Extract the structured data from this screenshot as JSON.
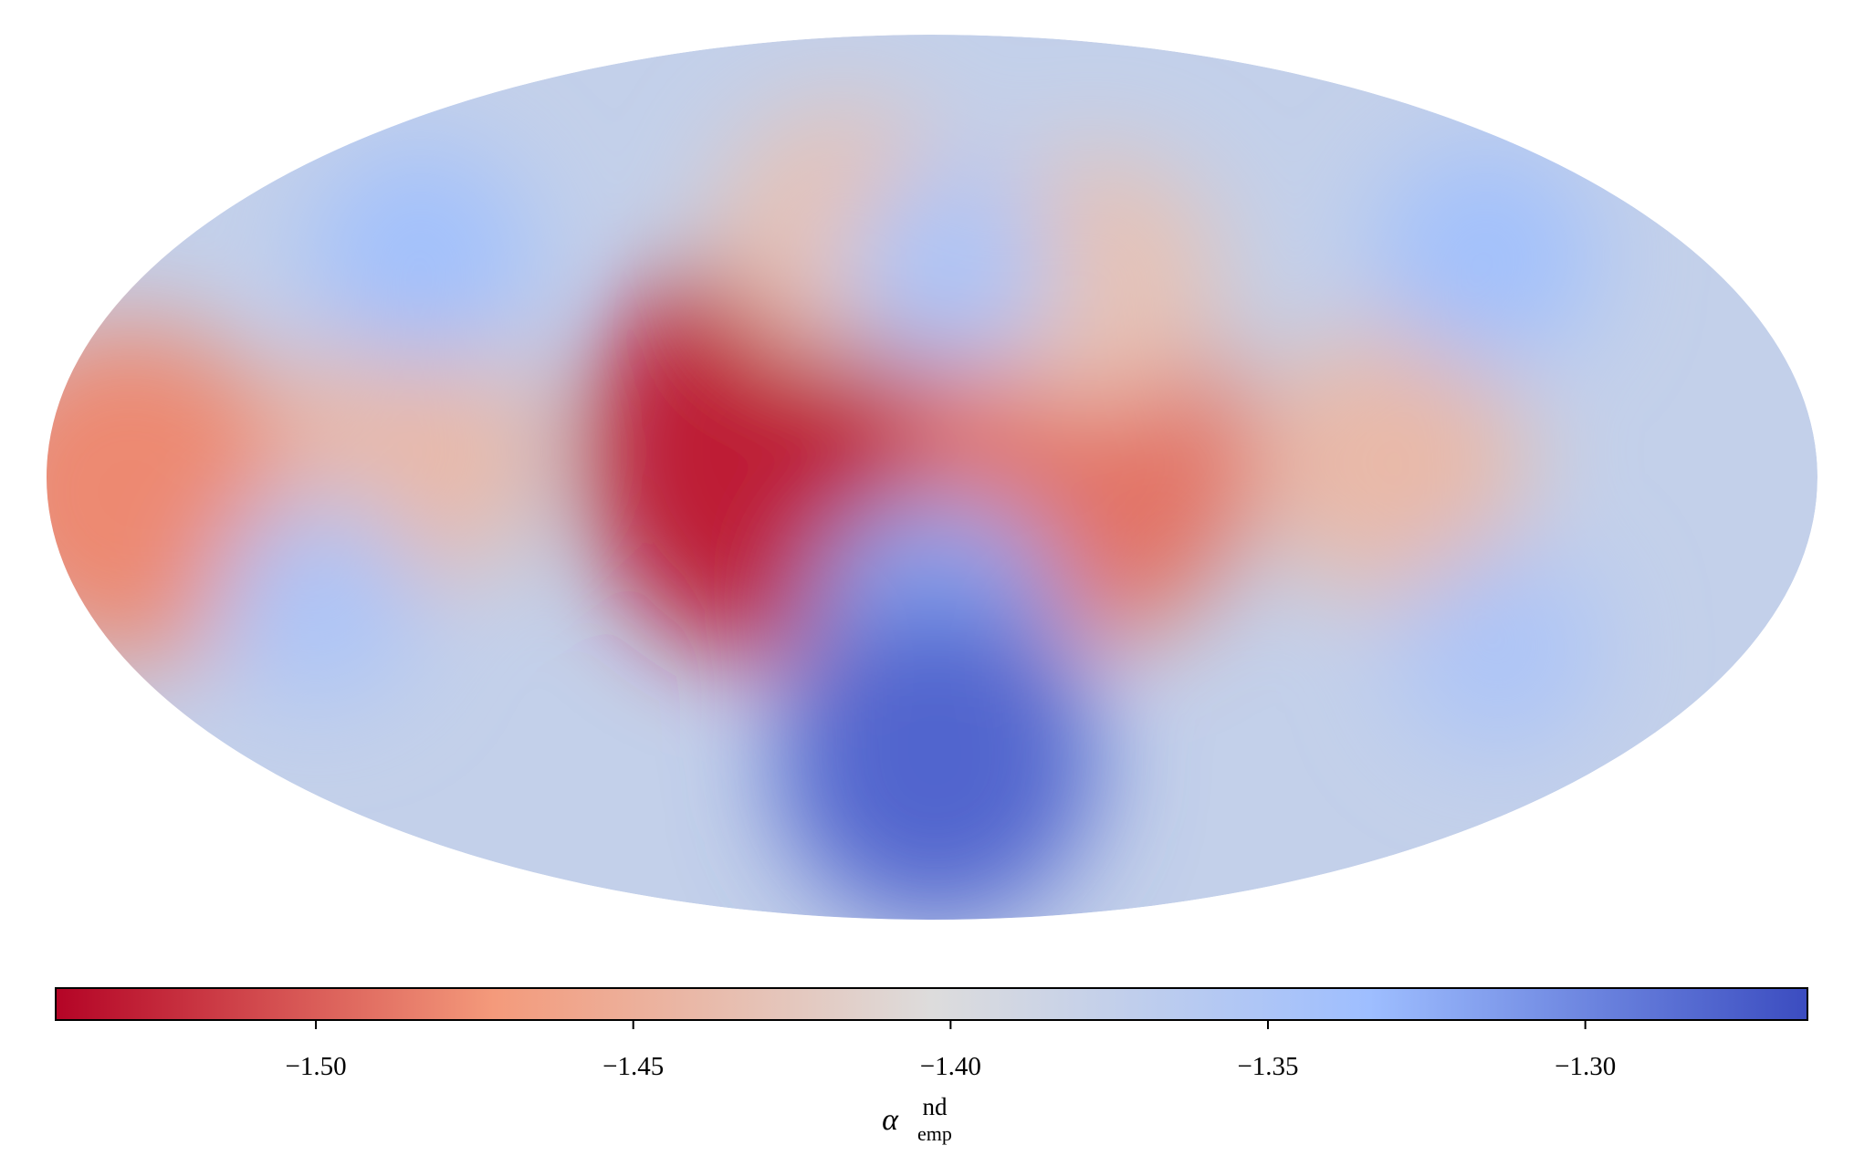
{
  "chart_data": {
    "type": "mollweide",
    "background_value": -1.375,
    "blobs": [
      {
        "lon": 29,
        "lat": 5,
        "value": -1.53
      },
      {
        "lon": -30,
        "lat": 2,
        "value": -1.49
      },
      {
        "lon": 163,
        "lat": -3,
        "value": -1.48
      },
      {
        "lon": 107,
        "lat": 5,
        "value": -1.44
      },
      {
        "lon": -93,
        "lat": 3,
        "value": -1.44
      },
      {
        "lon": 22,
        "lat": 50,
        "value": -1.43
      },
      {
        "lon": -37,
        "lat": 40,
        "value": -1.43
      },
      {
        "lon": -4,
        "lat": 42,
        "value": -1.35
      },
      {
        "lon": -1,
        "lat": -30,
        "value": -1.32
      },
      {
        "lon": -1,
        "lat": -58,
        "value": -1.28
      },
      {
        "lon": 120,
        "lat": 45,
        "value": -1.34
      },
      {
        "lon": -130,
        "lat": 45,
        "value": -1.34
      },
      {
        "lon": 130,
        "lat": -25,
        "value": -1.35
      },
      {
        "lon": -125,
        "lat": -35,
        "value": -1.35
      }
    ],
    "colormap": [
      "#b40426",
      "#f49a7b",
      "#dddcdc",
      "#9ebeff",
      "#3b4cc0"
    ],
    "xlim": [
      -1.541,
      -1.265
    ],
    "xticks": [
      {
        "value": -1.5,
        "label": "−1.50"
      },
      {
        "value": -1.45,
        "label": "−1.45"
      },
      {
        "value": -1.4,
        "label": "−1.40"
      },
      {
        "value": -1.35,
        "label": "−1.35"
      },
      {
        "value": -1.3,
        "label": "−1.30"
      }
    ],
    "colorbar_label": {
      "symbol": "α",
      "superscript": "nd",
      "subscript": "emp"
    }
  }
}
